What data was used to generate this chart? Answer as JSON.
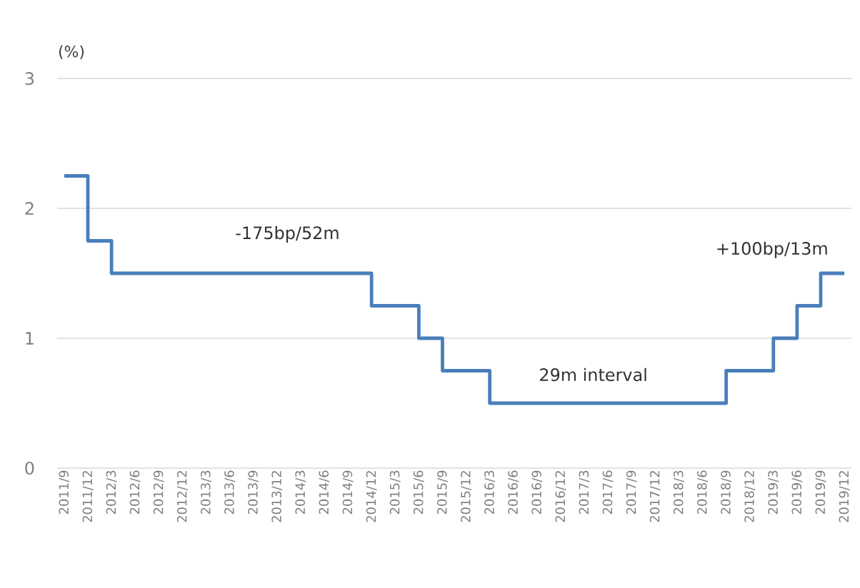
{
  "chart_data": {
    "type": "step",
    "ylabel": "(%)",
    "categories": [
      "2011/9",
      "2011/12",
      "2012/3",
      "2012/6",
      "2012/9",
      "2012/12",
      "2013/3",
      "2013/6",
      "2013/9",
      "2013/12",
      "2014/3",
      "2014/6",
      "2014/9",
      "2014/12",
      "2015/3",
      "2015/6",
      "2015/9",
      "2015/12",
      "2016/3",
      "2016/6",
      "2016/9",
      "2016/12",
      "2017/3",
      "2017/6",
      "2017/9",
      "2017/12",
      "2018/3",
      "2018/6",
      "2018/9",
      "2018/12",
      "2019/3",
      "2019/6",
      "2019/9",
      "2019/12"
    ],
    "values": [
      2.25,
      1.75,
      1.5,
      1.5,
      1.5,
      1.5,
      1.5,
      1.5,
      1.5,
      1.5,
      1.5,
      1.5,
      1.5,
      1.25,
      1.25,
      1.0,
      0.75,
      0.75,
      0.5,
      0.5,
      0.5,
      0.5,
      0.5,
      0.5,
      0.5,
      0.5,
      0.5,
      0.5,
      0.75,
      0.75,
      1.0,
      1.25,
      1.5,
      1.5
    ],
    "color": "#4a7ebb",
    "ylim": [
      0,
      3
    ],
    "yticks": [
      0,
      1,
      2,
      3
    ],
    "grid": "y",
    "annotations": [
      "-175bp/52m",
      "29m interval",
      "+100bp/13m"
    ]
  }
}
